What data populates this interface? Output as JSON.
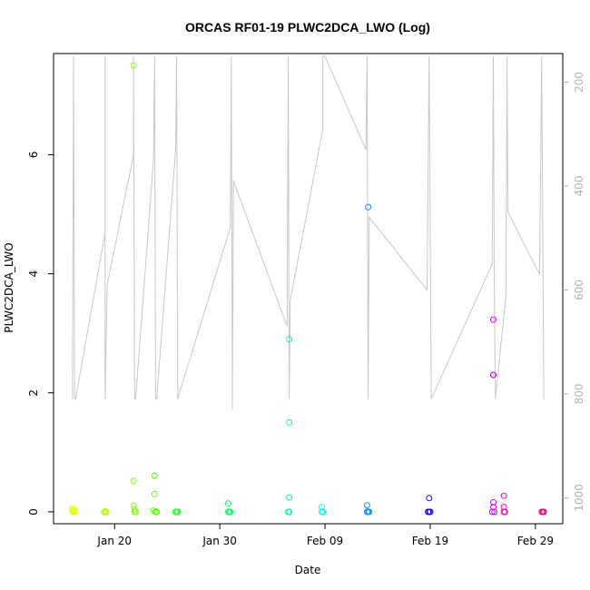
{
  "chart_data": {
    "type": "scatter",
    "title": "ORCAS RF01-19 PLWC2DCA_LWO (Log)",
    "xlabel": "Date",
    "ylabel": "PLWC2DCA_LWO",
    "x_ticks": [
      "Jan 20",
      "Jan 30",
      "Feb 09",
      "Feb 19",
      "Feb 29"
    ],
    "x_tick_days": [
      20,
      30,
      40,
      50,
      60
    ],
    "xlim_days": [
      14.2,
      62.6
    ],
    "ylim": [
      -0.2,
      7.7
    ],
    "y_ticks": [
      0,
      2,
      4,
      6
    ],
    "y2_ticks": [
      200,
      400,
      600,
      800,
      1000
    ],
    "y2lim": [
      1050,
      145
    ],
    "colors": {
      "frame": "#000000",
      "track": "#c8c8c8",
      "right_axis": "#b3b3b3"
    },
    "series": [
      {
        "color": "#e0ff00",
        "points": [
          [
            16.0,
            0.0
          ],
          [
            16.0,
            0.03
          ],
          [
            16.0,
            0.06
          ],
          [
            16.2,
            0.0
          ],
          [
            16.2,
            0.02
          ]
        ]
      },
      {
        "color": "#b0ff00",
        "points": [
          [
            19.0,
            0.0
          ],
          [
            19.1,
            0.01
          ],
          [
            19.2,
            0.0
          ]
        ]
      },
      {
        "color": "#80ff00",
        "points": [
          [
            21.8,
            7.5
          ],
          [
            21.8,
            0.52
          ],
          [
            21.8,
            0.1
          ],
          [
            21.9,
            0.04
          ],
          [
            21.9,
            0.0
          ],
          [
            22.0,
            0.0
          ]
        ]
      },
      {
        "color": "#55ff00",
        "points": [
          [
            23.8,
            0.61
          ],
          [
            23.8,
            0.3
          ],
          [
            23.7,
            0.02
          ],
          [
            23.9,
            0.0
          ],
          [
            24.0,
            0.0
          ]
        ]
      },
      {
        "color": "#20ff20",
        "points": [
          [
            25.8,
            0.0
          ],
          [
            25.9,
            0.0
          ],
          [
            26.0,
            0.0
          ]
        ]
      },
      {
        "color": "#00ff60",
        "points": [
          [
            30.8,
            0.14
          ],
          [
            30.8,
            0.0
          ],
          [
            30.9,
            0.0
          ],
          [
            31.0,
            0.0
          ]
        ]
      },
      {
        "color": "#00ffb0",
        "points": [
          [
            36.6,
            2.9
          ],
          [
            36.6,
            1.5
          ],
          [
            36.6,
            0.24
          ],
          [
            36.5,
            0.0
          ],
          [
            36.6,
            0.0
          ]
        ]
      },
      {
        "color": "#00ffe0",
        "points": [
          [
            39.7,
            0.08
          ],
          [
            39.7,
            0.0
          ],
          [
            39.8,
            0.0
          ]
        ]
      },
      {
        "color": "#0090ff",
        "points": [
          [
            44.1,
            5.12
          ],
          [
            44.0,
            0.11
          ],
          [
            44.0,
            0.0
          ],
          [
            44.1,
            0.0
          ],
          [
            44.2,
            0.0
          ]
        ]
      },
      {
        "color": "#2000ff",
        "points": [
          [
            49.9,
            0.23
          ],
          [
            49.8,
            0.0
          ],
          [
            49.9,
            0.0
          ],
          [
            50.0,
            0.0
          ]
        ]
      },
      {
        "color": "#d000ff",
        "points": [
          [
            56.0,
            3.23
          ],
          [
            56.0,
            2.3
          ],
          [
            56.0,
            2.3
          ],
          [
            56.0,
            0.16
          ],
          [
            56.0,
            0.08
          ],
          [
            55.9,
            0.0
          ],
          [
            56.1,
            0.0
          ]
        ]
      },
      {
        "color": "#ff00c8",
        "points": [
          [
            57.0,
            0.27
          ],
          [
            57.0,
            0.08
          ],
          [
            57.0,
            0.0
          ],
          [
            57.1,
            0.0
          ]
        ]
      },
      {
        "color": "#ff0070",
        "points": [
          [
            60.6,
            0.0
          ],
          [
            60.7,
            0.0
          ],
          [
            60.8,
            0.0
          ]
        ]
      }
    ],
    "track": [
      [
        16.0,
        810
      ],
      [
        16.1,
        150
      ],
      [
        16.2,
        810
      ],
      [
        16.3,
        810
      ],
      [
        19.1,
        490
      ],
      [
        19.1,
        150
      ],
      [
        19.1,
        810
      ],
      [
        19.3,
        590
      ],
      [
        21.8,
        340
      ],
      [
        21.8,
        150
      ],
      [
        21.9,
        810
      ],
      [
        22.0,
        810
      ],
      [
        23.7,
        350
      ],
      [
        23.8,
        150
      ],
      [
        23.9,
        810
      ],
      [
        24.0,
        810
      ],
      [
        25.8,
        330
      ],
      [
        25.9,
        150
      ],
      [
        26.0,
        810
      ],
      [
        31.0,
        480
      ],
      [
        31.1,
        150
      ],
      [
        31.2,
        830
      ],
      [
        31.3,
        390
      ],
      [
        36.4,
        670
      ],
      [
        36.5,
        150
      ],
      [
        36.6,
        810
      ],
      [
        36.7,
        620
      ],
      [
        39.8,
        290
      ],
      [
        39.8,
        150
      ],
      [
        40.0,
        150
      ],
      [
        43.9,
        330
      ],
      [
        44.0,
        150
      ],
      [
        44.1,
        810
      ],
      [
        44.2,
        460
      ],
      [
        49.7,
        600
      ],
      [
        49.9,
        150
      ],
      [
        50.1,
        810
      ],
      [
        55.9,
        550
      ],
      [
        56.0,
        150
      ],
      [
        56.1,
        620
      ],
      [
        56.2,
        810
      ],
      [
        57.2,
        610
      ],
      [
        57.3,
        150
      ],
      [
        57.4,
        450
      ],
      [
        60.4,
        570
      ],
      [
        60.6,
        150
      ],
      [
        60.8,
        810
      ]
    ]
  }
}
